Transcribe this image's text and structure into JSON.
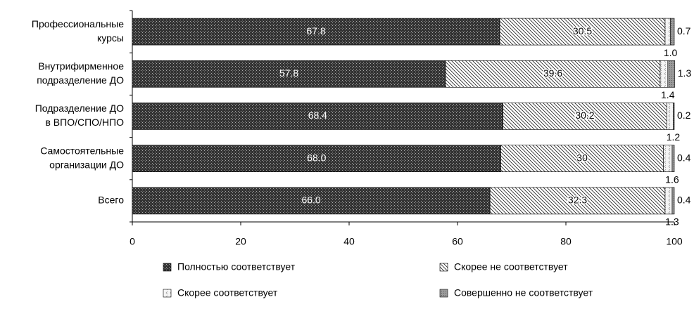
{
  "chart_data": {
    "type": "stacked-bar-horizontal",
    "categories": [
      [
        "Профессиональные",
        "курсы"
      ],
      [
        "Внутрифирменное",
        "подразделение ДО"
      ],
      [
        "Подразделение ДО",
        "в ВПО/СПО/НПО"
      ],
      [
        "Самостоятельные",
        "организации ДО"
      ],
      [
        "Всего"
      ]
    ],
    "series": [
      {
        "name": "Полностью соответствует",
        "color": "#333333",
        "values": [
          67.8,
          57.8,
          68.4,
          68.0,
          66.0
        ],
        "value_labels": [
          "67.8",
          "57.8",
          "68.4",
          "68.0",
          "66.0"
        ]
      },
      {
        "name": "Скорее не соответствует",
        "color": "#ffffff",
        "values": [
          30.5,
          39.6,
          30.2,
          30.0,
          32.3
        ]
      },
      {
        "name": "Скорее соответствует",
        "color": "#f4f4f4",
        "values": [
          1.0,
          1.4,
          1.2,
          1.6,
          1.3
        ],
        "value_labels": [
          "1.0",
          "1.4",
          "1.2",
          "1.6",
          "1.3"
        ]
      },
      {
        "name": "Совершенно не соответствует",
        "color": "#9a9a9a",
        "values": [
          0.7,
          1.3,
          0.2,
          0.4,
          0.4
        ]
      }
    ],
    "xlim": [
      0,
      100
    ],
    "xticks": [
      0,
      20,
      40,
      60,
      80,
      100
    ]
  }
}
